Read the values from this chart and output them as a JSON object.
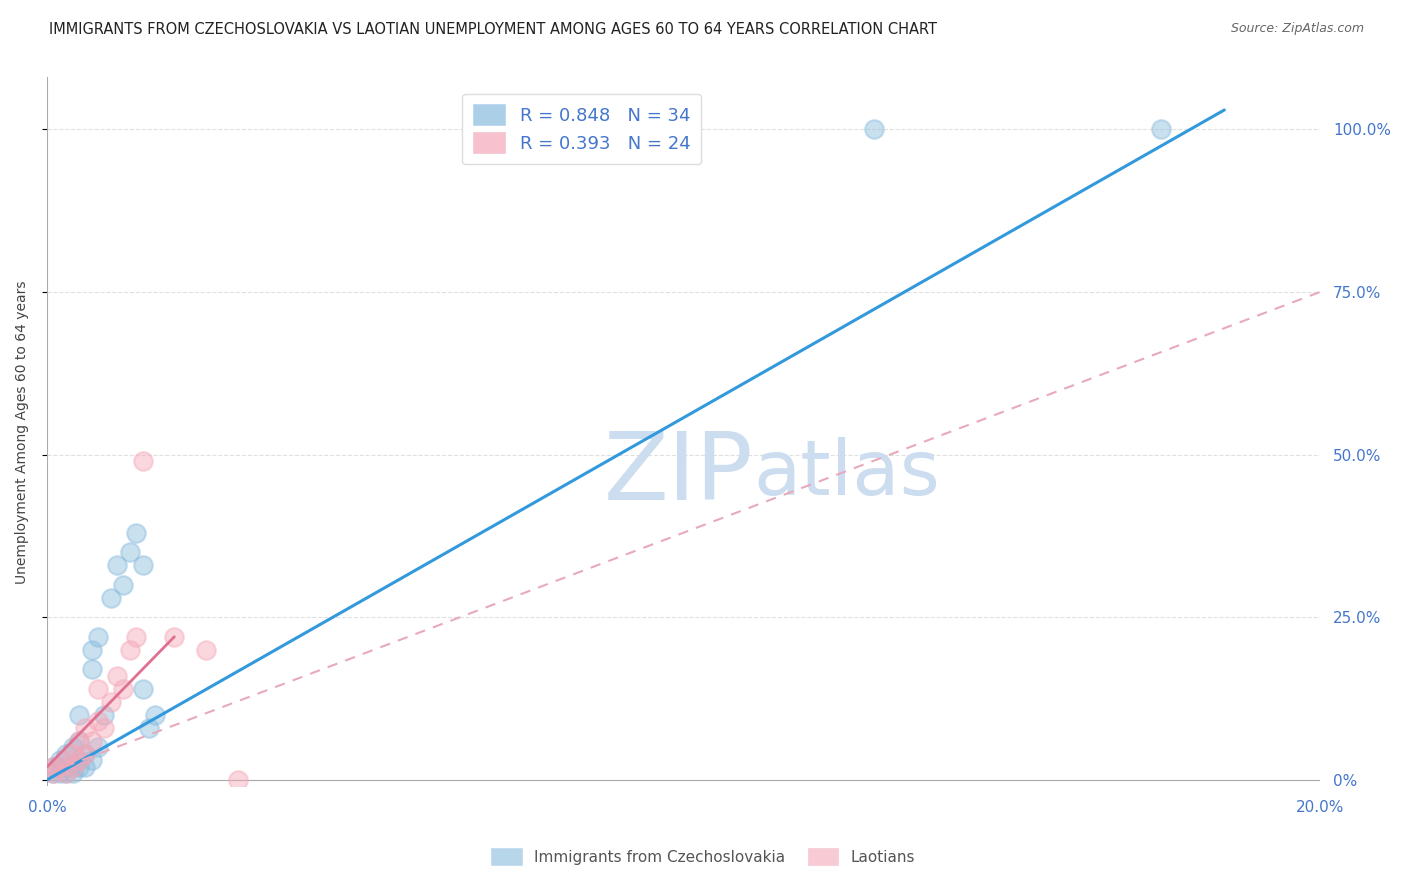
{
  "title": "IMMIGRANTS FROM CZECHOSLOVAKIA VS LAOTIAN UNEMPLOYMENT AMONG AGES 60 TO 64 YEARS CORRELATION CHART",
  "source_text": "Source: ZipAtlas.com",
  "ylabel": "Unemployment Among Ages 60 to 64 years",
  "xlim": [
    0.0,
    0.2
  ],
  "ylim": [
    -0.01,
    1.08
  ],
  "yticks": [
    0.0,
    0.25,
    0.5,
    0.75,
    1.0
  ],
  "ytick_labels_right": [
    "0%",
    "25.0%",
    "50.0%",
    "75.0%",
    "100.0%"
  ],
  "xticks": [
    0.0,
    0.05,
    0.1,
    0.15,
    0.2
  ],
  "xtick_labels": [
    "0.0%",
    "",
    "",
    "",
    "20.0%"
  ],
  "blue_color": "#88bbdd",
  "pink_color": "#f4a8b8",
  "blue_line_color": "#3399dd",
  "pink_line_color": "#e07090",
  "pink_dash_color": "#e8aabb",
  "legend_r1": "R = 0.848   N = 34",
  "legend_r2": "R = 0.393   N = 24",
  "legend_label1": "Immigrants from Czechoslovakia",
  "legend_label2": "Laotians",
  "watermark": "ZIPatlas",
  "blue_scatter_x": [
    0.001,
    0.001,
    0.002,
    0.002,
    0.002,
    0.003,
    0.003,
    0.003,
    0.004,
    0.004,
    0.004,
    0.005,
    0.005,
    0.005,
    0.005,
    0.006,
    0.006,
    0.007,
    0.007,
    0.007,
    0.008,
    0.008,
    0.009,
    0.01,
    0.011,
    0.012,
    0.013,
    0.014,
    0.015,
    0.015,
    0.016,
    0.017,
    0.13,
    0.175
  ],
  "blue_scatter_y": [
    0.01,
    0.02,
    0.01,
    0.02,
    0.03,
    0.01,
    0.02,
    0.04,
    0.01,
    0.02,
    0.05,
    0.02,
    0.03,
    0.06,
    0.1,
    0.02,
    0.04,
    0.03,
    0.17,
    0.2,
    0.05,
    0.22,
    0.1,
    0.28,
    0.33,
    0.3,
    0.35,
    0.38,
    0.33,
    0.14,
    0.08,
    0.1,
    1.0,
    1.0
  ],
  "pink_scatter_x": [
    0.001,
    0.001,
    0.002,
    0.003,
    0.003,
    0.004,
    0.004,
    0.005,
    0.005,
    0.006,
    0.006,
    0.007,
    0.008,
    0.008,
    0.009,
    0.01,
    0.011,
    0.012,
    0.013,
    0.014,
    0.015,
    0.02,
    0.025,
    0.03
  ],
  "pink_scatter_y": [
    0.01,
    0.02,
    0.02,
    0.01,
    0.03,
    0.02,
    0.04,
    0.03,
    0.06,
    0.04,
    0.08,
    0.06,
    0.09,
    0.14,
    0.08,
    0.12,
    0.16,
    0.14,
    0.2,
    0.22,
    0.49,
    0.22,
    0.2,
    0.0
  ],
  "blue_line_x": [
    0.0,
    0.185
  ],
  "blue_line_y": [
    0.0,
    1.03
  ],
  "pink_solid_line_x": [
    0.0,
    0.02
  ],
  "pink_solid_line_y": [
    0.02,
    0.22
  ],
  "pink_dash_line_x": [
    0.0,
    0.2
  ],
  "pink_dash_line_y": [
    0.01,
    0.75
  ],
  "title_fontsize": 10.5,
  "source_fontsize": 9,
  "axis_label_fontsize": 10,
  "legend_fontsize": 13,
  "watermark_fontsize": 68,
  "watermark_color": "#ccddf0",
  "background_color": "#ffffff",
  "grid_color": "#dddddd"
}
